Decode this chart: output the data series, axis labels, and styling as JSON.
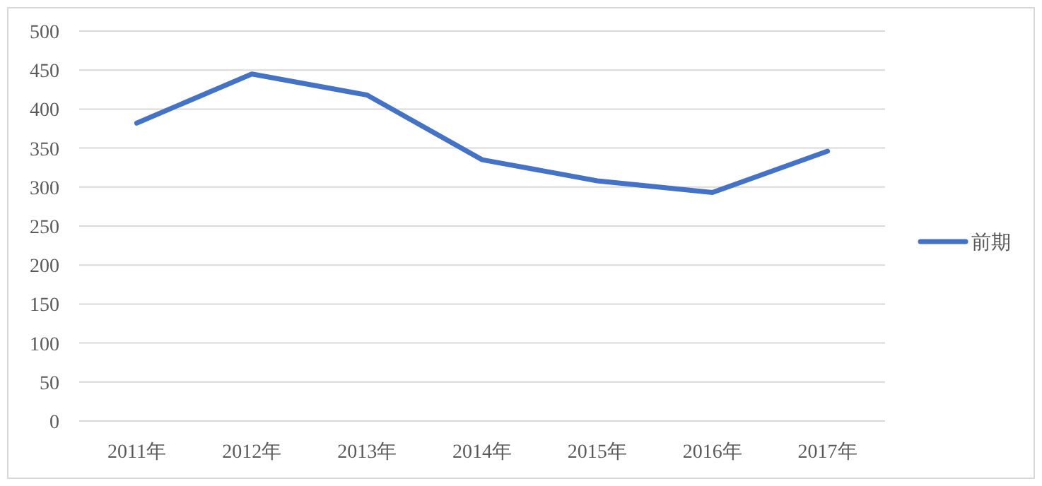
{
  "chart_data": {
    "type": "line",
    "categories": [
      "2011年",
      "2012年",
      "2013年",
      "2014年",
      "2015年",
      "2016年",
      "2017年"
    ],
    "series": [
      {
        "name": "前期",
        "color": "#4472c4",
        "values": [
          382,
          445,
          418,
          335,
          308,
          293,
          346
        ]
      }
    ],
    "ylim": [
      0,
      500
    ],
    "yticks": [
      0,
      50,
      100,
      150,
      200,
      250,
      300,
      350,
      400,
      450,
      500
    ],
    "grid": "y",
    "legend": "right",
    "marker": "none",
    "line_style": "solid"
  }
}
